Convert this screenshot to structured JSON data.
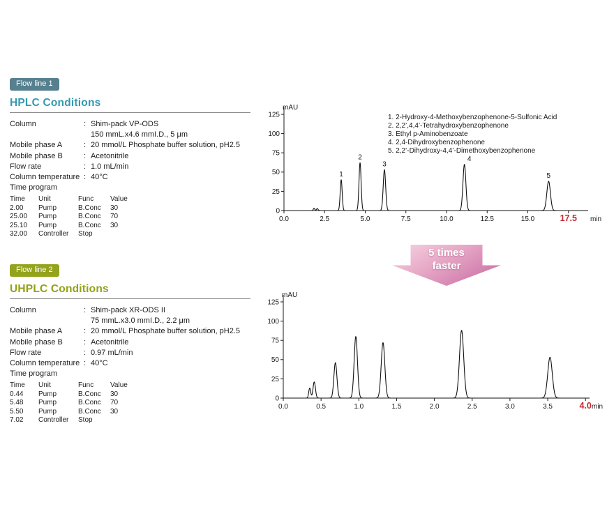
{
  "colon": ":",
  "colors": {
    "flow1_badge": "#57808f",
    "flow1_title": "#3399ae",
    "flow2_badge": "#94a31c",
    "flow2_title": "#92a214",
    "highlight_red": "#c42a30",
    "arrow_pink_light": "#f5d5e4",
    "arrow_pink_dark": "#c9739f"
  },
  "flow1": {
    "badge": "Flow line 1",
    "title": "HPLC Conditions",
    "conditions": [
      {
        "label": "Column",
        "value": "Shim-pack VP-ODS"
      },
      {
        "label": "",
        "value": "150 mmL.x4.6 mmI.D., 5 μm"
      },
      {
        "label": "Mobile phase A",
        "value": "20 mmol/L Phosphate buffer solution, pH2.5"
      },
      {
        "label": "Mobile phase B",
        "value": "Acetonitrile"
      },
      {
        "label": "Flow rate",
        "value": "1.0 mL/min"
      },
      {
        "label": "Column temperature",
        "value": "40°C"
      },
      {
        "label": "Time program",
        "value": ""
      }
    ],
    "time_program": {
      "headers": [
        "Time",
        "Unit",
        "Func",
        "Value"
      ],
      "rows": [
        [
          "2.00",
          "Pump",
          "B.Conc",
          "30"
        ],
        [
          "25.00",
          "Pump",
          "B.Conc",
          "70"
        ],
        [
          "25.10",
          "Pump",
          "B.Conc",
          "30"
        ],
        [
          "32.00",
          "Controller",
          "Stop",
          ""
        ]
      ]
    }
  },
  "flow2": {
    "badge": "Flow line 2",
    "title": "UHPLC Conditions",
    "conditions": [
      {
        "label": "Column",
        "value": "Shim-pack XR-ODS II"
      },
      {
        "label": "",
        "value": "75 mmL.x3.0 mmI.D., 2.2 μm"
      },
      {
        "label": "Mobile phase A",
        "value": "20 mmol/L Phosphate buffer solution, pH2.5"
      },
      {
        "label": "Mobile phase B",
        "value": "Acetonitrile"
      },
      {
        "label": "Flow rate",
        "value": "0.97 mL/min"
      },
      {
        "label": "Column temperature",
        "value": "40°C"
      },
      {
        "label": "Time program",
        "value": ""
      }
    ],
    "time_program": {
      "headers": [
        "Time",
        "Unit",
        "Func",
        "Value"
      ],
      "rows": [
        [
          "0.44",
          "Pump",
          "B.Conc",
          "30"
        ],
        [
          "5.48",
          "Pump",
          "B.Conc",
          "70"
        ],
        [
          "5.50",
          "Pump",
          "B.Conc",
          "30"
        ],
        [
          "7.02",
          "Controller",
          "Stop",
          ""
        ]
      ]
    }
  },
  "arrow": {
    "line1": "5 times",
    "line2": "faster"
  },
  "chart_data": [
    {
      "type": "line",
      "title": "HPLC chromatogram",
      "ylabel": "mAU",
      "xlabel": "min",
      "xlim": [
        0,
        18.7
      ],
      "ylim": [
        0,
        125
      ],
      "xticks": [
        0,
        2.5,
        5,
        7.5,
        10,
        12.5,
        15,
        17.5
      ],
      "xtick_labels": [
        "0.0",
        "2.5",
        "5.0",
        "7.5",
        "10.0",
        "12.5",
        "15.0",
        "17.5"
      ],
      "yticks": [
        0,
        25,
        50,
        75,
        100,
        125
      ],
      "highlight_last_xtick": true,
      "grid": false,
      "peaks": [
        {
          "rt": 1.85,
          "height": 3,
          "sigma": 0.045
        },
        {
          "rt": 2.05,
          "height": 2.5,
          "sigma": 0.05
        },
        {
          "rt": 3.52,
          "height": 40,
          "sigma": 0.06,
          "label": "1"
        },
        {
          "rt": 4.68,
          "height": 62,
          "sigma": 0.065,
          "label": "2"
        },
        {
          "rt": 6.18,
          "height": 53,
          "sigma": 0.075,
          "label": "3"
        },
        {
          "rt": 11.1,
          "height": 60,
          "sigma": 0.09,
          "label": "4",
          "label_dx": 0.3
        },
        {
          "rt": 16.28,
          "height": 38,
          "sigma": 0.11,
          "label": "5"
        }
      ],
      "legend": [
        "1. 2-Hydroxy-4-Methoxybenzophenone-5-Sulfonic Acid",
        "2. 2,2’,4,4’-Tetrahydroxybenzophenone",
        "3. Ethyl p-Aminobenzoate",
        "4. 2,4-Dihydroxybenzophenone",
        "5. 2,2’-Dihydroxy-4,4’-Dimethoxybenzophenone"
      ],
      "legend_position": "upper right"
    },
    {
      "type": "line",
      "title": "UHPLC chromatogram",
      "ylabel": "mAU",
      "xlabel": "min",
      "xlim": [
        0,
        4.05
      ],
      "ylim": [
        0,
        125
      ],
      "xticks": [
        0,
        0.5,
        1,
        1.5,
        2,
        2.5,
        3,
        3.5,
        4
      ],
      "xtick_labels": [
        "0.0",
        "0.5",
        "1.0",
        "1.5",
        "2.0",
        "2.5",
        "3.0",
        "3.5",
        "4.0"
      ],
      "yticks": [
        0,
        25,
        50,
        75,
        100,
        125
      ],
      "highlight_last_xtick": true,
      "grid": false,
      "peaks": [
        {
          "rt": 0.35,
          "height": 13,
          "sigma": 0.013
        },
        {
          "rt": 0.41,
          "height": 21,
          "sigma": 0.016
        },
        {
          "rt": 0.69,
          "height": 46,
          "sigma": 0.02
        },
        {
          "rt": 0.96,
          "height": 80,
          "sigma": 0.022
        },
        {
          "rt": 1.32,
          "height": 72,
          "sigma": 0.024
        },
        {
          "rt": 2.36,
          "height": 88,
          "sigma": 0.028
        },
        {
          "rt": 3.53,
          "height": 53,
          "sigma": 0.03
        }
      ]
    }
  ]
}
